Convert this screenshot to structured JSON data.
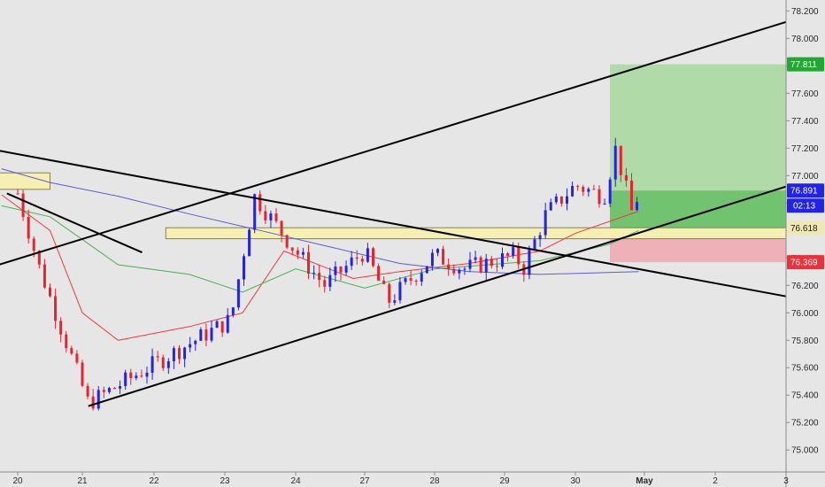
{
  "chart_data": {
    "type": "candlestick",
    "xlabels": [
      "20",
      "21",
      "22",
      "23",
      "24",
      "27",
      "28",
      "29",
      "30",
      "May",
      "2",
      "3"
    ],
    "yticks": [
      "78.200",
      "78.000",
      "77.800",
      "77.600",
      "77.400",
      "77.200",
      "77.000",
      "76.800",
      "76.600",
      "76.400",
      "76.200",
      "76.000",
      "75.800",
      "75.600",
      "75.400",
      "75.200",
      "75.000"
    ],
    "ylim": [
      74.84,
      78.28
    ],
    "bar_hours": 2,
    "price_tags": {
      "take_profit": "77.811",
      "current": "76.891",
      "countdown": "02:13",
      "entry": "76.618",
      "stop": "76.369"
    },
    "price_levels": {
      "take_profit": 77.811,
      "current": 76.891,
      "entry": 76.618,
      "stop": 76.369
    },
    "key_points": [
      {
        "time": "20 00:00",
        "price": 76.87
      },
      {
        "time": "20 08:00",
        "price": 76.33
      },
      {
        "time": "21 02:00",
        "price": 75.34
      },
      {
        "time": "21 22:00",
        "price": 75.6
      },
      {
        "time": "23 02:00",
        "price": 75.95
      },
      {
        "time": "23 10:00",
        "price": 76.85
      },
      {
        "time": "24 00:00",
        "price": 76.45
      },
      {
        "time": "24 10:00",
        "price": 76.2
      },
      {
        "time": "27 00:00",
        "price": 76.45
      },
      {
        "time": "27 08:00",
        "price": 76.08
      },
      {
        "time": "28 00:00",
        "price": 76.42
      },
      {
        "time": "28 10:00",
        "price": 76.32
      },
      {
        "time": "29 04:00",
        "price": 76.42
      },
      {
        "time": "29 06:00",
        "price": 76.3
      },
      {
        "time": "29 14:00",
        "price": 76.72
      },
      {
        "time": "30 00:00",
        "price": 76.93
      },
      {
        "time": "30 10:00",
        "price": 76.85
      },
      {
        "time": "30 14:00",
        "price": 77.2
      },
      {
        "time": "30 20:00",
        "price": 76.7
      },
      {
        "time": "30 22:00",
        "price": 76.89
      }
    ],
    "trendlines": [
      {
        "color": "#000000",
        "from": {
          "time": "21 02:00",
          "price": 75.32
        },
        "to": {
          "time": "3 00:00",
          "price": 76.92
        }
      },
      {
        "color": "#000000",
        "from": {
          "time": "19 12:00",
          "price": 76.32
        },
        "to": {
          "time": "3 00:00",
          "price": 78.12
        }
      },
      {
        "color": "#000000",
        "from": {
          "time": "19 12:00",
          "price": 77.2
        },
        "to": {
          "time": "3 00:00",
          "price": 76.12
        }
      },
      {
        "color": "#000000",
        "from": {
          "time": "19 20:00",
          "price": 76.87
        },
        "to": {
          "time": "21 20:00",
          "price": 76.44
        }
      }
    ],
    "zones": [
      {
        "from": {
          "time": "19 12:00",
          "price": 77.02
        },
        "to": {
          "time": "20 12:00",
          "price": 76.9
        }
      },
      {
        "from": {
          "time": "22 04:00",
          "price": 76.62
        },
        "to": {
          "time": "3 00:00",
          "price": 76.54
        }
      }
    ],
    "moving_averages": [
      {
        "color": "#ee3b3b",
        "points": [
          {
            "time": "19 18:00",
            "price": 76.86
          },
          {
            "time": "20 12:00",
            "price": 76.6
          },
          {
            "time": "21 00:00",
            "price": 76.0
          },
          {
            "time": "21 12:00",
            "price": 75.8
          },
          {
            "time": "22 12:00",
            "price": 75.9
          },
          {
            "time": "23 06:00",
            "price": 76.0
          },
          {
            "time": "23 20:00",
            "price": 76.45
          },
          {
            "time": "24 20:00",
            "price": 76.25
          },
          {
            "time": "27 12:00",
            "price": 76.3
          },
          {
            "time": "28 12:00",
            "price": 76.36
          },
          {
            "time": "29 12:00",
            "price": 76.45
          },
          {
            "time": "30 00:00",
            "price": 76.58
          },
          {
            "time": "30 22:00",
            "price": 76.74
          }
        ]
      },
      {
        "color": "#4caf50",
        "points": [
          {
            "time": "19 18:00",
            "price": 76.78
          },
          {
            "time": "20 12:00",
            "price": 76.7
          },
          {
            "time": "21 12:00",
            "price": 76.35
          },
          {
            "time": "22 12:00",
            "price": 76.28
          },
          {
            "time": "23 06:00",
            "price": 76.15
          },
          {
            "time": "24 00:00",
            "price": 76.32
          },
          {
            "time": "27 00:00",
            "price": 76.18
          },
          {
            "time": "28 00:00",
            "price": 76.32
          },
          {
            "time": "29 12:00",
            "price": 76.38
          },
          {
            "time": "30 12:00",
            "price": 76.5
          },
          {
            "time": "30 22:00",
            "price": 76.6
          }
        ]
      },
      {
        "color": "#5b5bd6",
        "points": [
          {
            "time": "19 18:00",
            "price": 77.05
          },
          {
            "time": "20 12:00",
            "price": 76.95
          },
          {
            "time": "21 12:00",
            "price": 76.85
          },
          {
            "time": "22 12:00",
            "price": 76.72
          },
          {
            "time": "23 12:00",
            "price": 76.6
          },
          {
            "time": "24 12:00",
            "price": 76.48
          },
          {
            "time": "27 12:00",
            "price": 76.36
          },
          {
            "time": "28 12:00",
            "price": 76.3
          },
          {
            "time": "29 12:00",
            "price": 76.28
          },
          {
            "time": "30 22:00",
            "price": 76.3
          }
        ]
      }
    ],
    "position": {
      "from_time": "30 12:00",
      "to_time": "3 00:00",
      "take_profit": 77.811,
      "entry": 76.618,
      "stop": 76.369,
      "fill_to": 76.891
    }
  },
  "colors": {
    "background": "#e6e6e6",
    "up": "#2323e8",
    "down": "#e8232e",
    "zone_fill": "#f6efb4",
    "zone_stroke": "#8a8050",
    "profit_fill": "#a6d79b",
    "profit_fill_strong": "#6cc06a",
    "loss_fill": "#efa7ae",
    "take_profit_tag": "#22a832",
    "current_tag": "#2323e8",
    "entry_tag": "#f0e8b4",
    "stop_tag": "#e5323b"
  }
}
